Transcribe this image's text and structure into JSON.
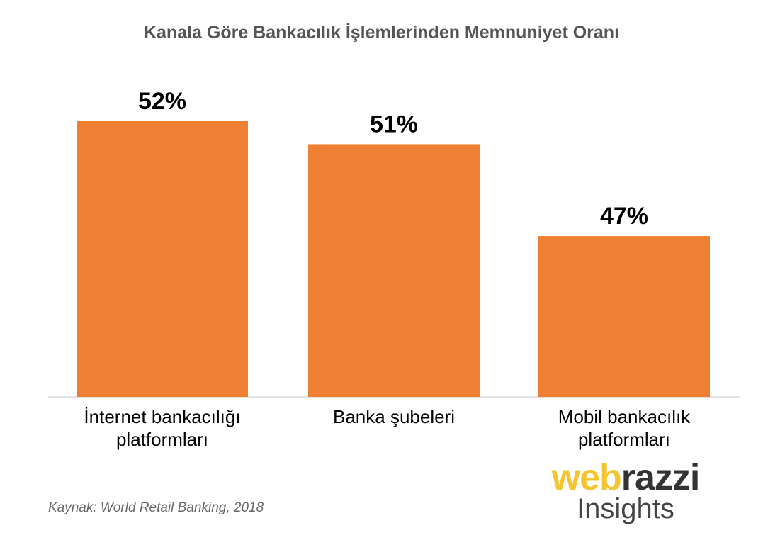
{
  "chart_data": {
    "type": "bar",
    "title": "Kanala Göre Bankacılık İşlemlerinden Memnuniyet Oranı",
    "categories": [
      [
        "İnternet bankacılığı",
        "platformları"
      ],
      [
        "Banka şubeleri"
      ],
      [
        "Mobil bankacılık",
        "platformları"
      ]
    ],
    "values": [
      52,
      51,
      47
    ],
    "value_labels": [
      "52%",
      "51%",
      "47%"
    ],
    "unit": "%",
    "ylim": [
      40,
      53
    ],
    "grid": false,
    "bar_color": "#ef7f33"
  },
  "source": "Kaynak: World Retail Banking, 2018",
  "logo": {
    "top_a": "web",
    "top_b": "razzi",
    "bottom": "Insights"
  }
}
